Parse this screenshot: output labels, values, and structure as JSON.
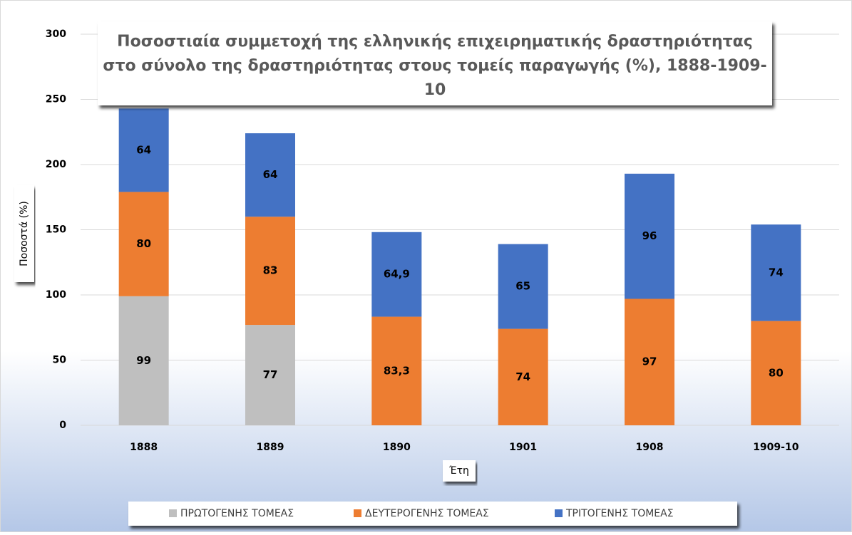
{
  "chart_data": {
    "type": "stacked-bar",
    "title": "Ποσοστιαία συμμετοχή της ελληνικής επιχειρηματικής δραστηριότητας στο σύνολο της δραστηριότητας στους τομείς παραγωγής (%), 1888-1909-10",
    "y_label": "Ποσοστά (%)",
    "x_label": "Έτη",
    "categories": [
      "1888",
      "1889",
      "1890",
      "1901",
      "1908",
      "1909-10"
    ],
    "series": [
      {
        "name": "ΠΡΩΤΟΓΕΝΗΣ ΤΟΜΕΑΣ",
        "color": "#bfbfbf",
        "values": [
          99,
          77,
          null,
          null,
          null,
          null
        ]
      },
      {
        "name": "ΔΕΥΤΕΡΟΓΕΝΗΣ ΤΟΜΕΑΣ",
        "color": "#ed7d31",
        "values": [
          80,
          83,
          83.3,
          74,
          97,
          80
        ],
        "value_labels": [
          "80",
          "83",
          "83,3",
          "74",
          "97",
          "80"
        ]
      },
      {
        "name": "ΤΡΙΤΟΓΕΝΗΣ ΤΟΜΕΑΣ",
        "color": "#4472c4",
        "values": [
          64,
          64,
          64.9,
          65,
          96,
          74
        ],
        "value_labels": [
          "64",
          "64",
          "64,9",
          "65",
          "96",
          "74"
        ]
      }
    ],
    "ylim": [
      0,
      300
    ],
    "yticks": [
      0,
      50,
      100,
      150,
      200,
      250,
      300
    ],
    "grid": true,
    "legend": "bottom"
  }
}
